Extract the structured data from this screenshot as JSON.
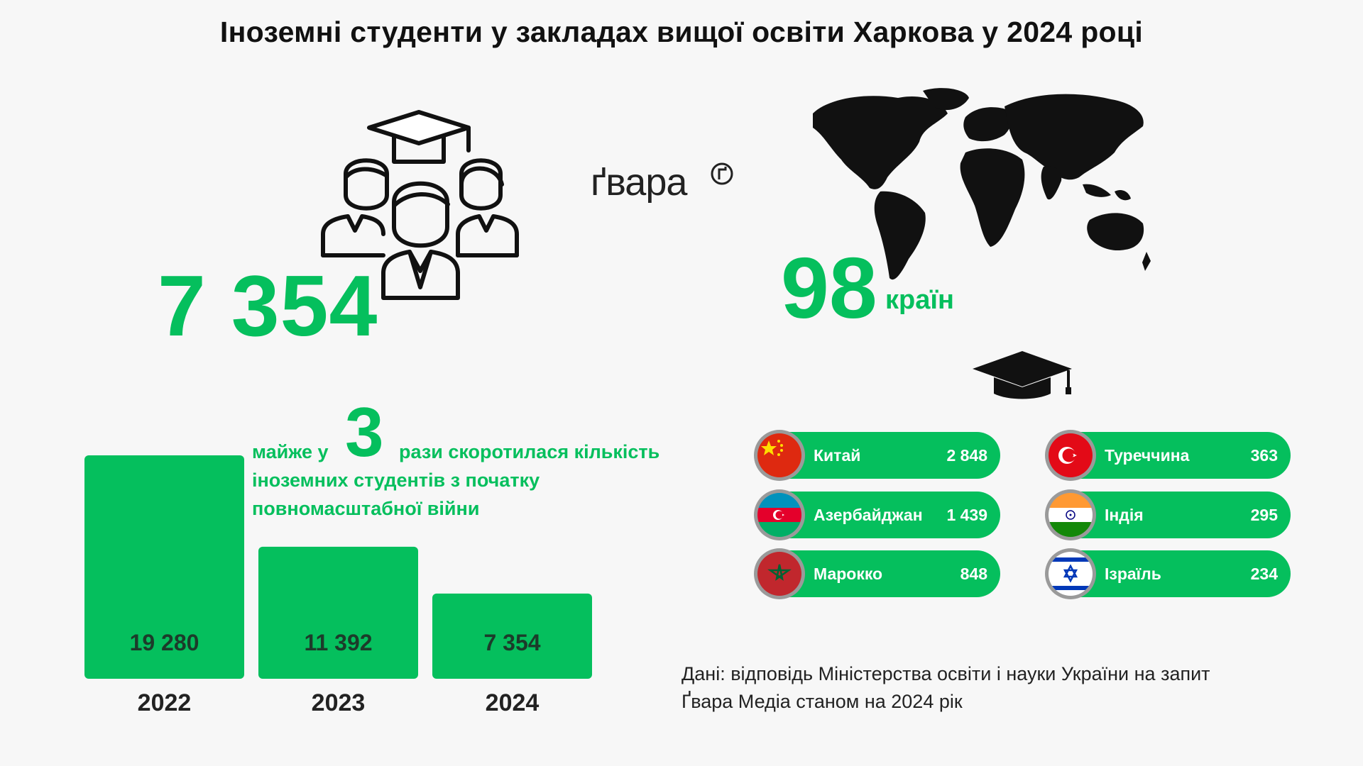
{
  "title": "Іноземні студенти у закладах вищої освіти Харкова у 2024 році",
  "logo": "ґвара",
  "total_students": "7 354",
  "countries_count": "98",
  "countries_word": "країн",
  "note": {
    "prefix": "майже у",
    "big": "3",
    "line1_rest": "рази скоротилася кількість",
    "line2": "іноземних студентів з початку",
    "line3": "повномасштабної війни"
  },
  "chart_data": {
    "type": "bar",
    "categories": [
      "2022",
      "2023",
      "2024"
    ],
    "values": [
      19280,
      11392,
      7354
    ],
    "value_labels": [
      "19 280",
      "11 392",
      "7 354"
    ],
    "color": "#05bf5d"
  },
  "top_countries": [
    {
      "name": "Китай",
      "value": "2 848",
      "flag": "china-flag-icon"
    },
    {
      "name": "Азербайджан",
      "value": "1 439",
      "flag": "azerbaijan-flag-icon"
    },
    {
      "name": "Марокко",
      "value": "848",
      "flag": "morocco-flag-icon"
    },
    {
      "name": "Туреччина",
      "value": "363",
      "flag": "turkey-flag-icon"
    },
    {
      "name": "Індія",
      "value": "295",
      "flag": "india-flag-icon"
    },
    {
      "name": "Ізраїль",
      "value": "234",
      "flag": "israel-flag-icon"
    }
  ],
  "source": {
    "line1": "Дані: відповідь Міністерства освіти і науки України на запит",
    "line2": "Ґвара Медіа станом на 2024 рік"
  },
  "colors": {
    "accent": "#05bf5d",
    "text": "#111111",
    "background": "#f7f7f7"
  }
}
